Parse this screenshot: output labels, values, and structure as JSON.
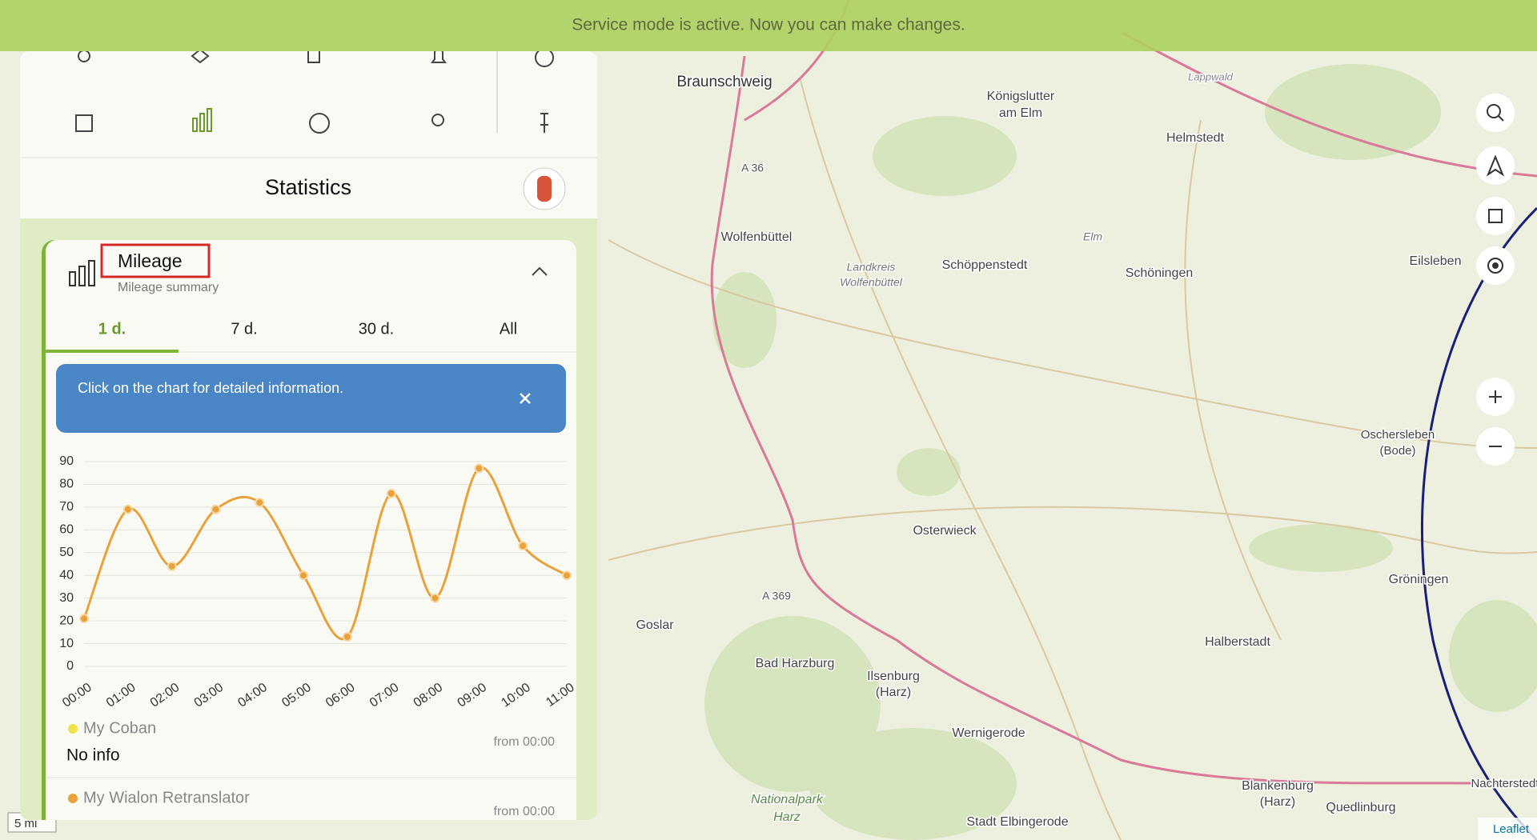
{
  "banner": {
    "text": "Service mode is active. Now you can make changes."
  },
  "panel": {
    "title": "Statistics",
    "card": {
      "title": "Mileage",
      "subtitle": "Mileage summary",
      "tabs": [
        "1 d.",
        "7 d.",
        "30 d.",
        "All"
      ],
      "info": "Click on the chart for detailed information.",
      "items": [
        {
          "name": "My Coban",
          "value": "No info",
          "since": "from 00:00"
        },
        {
          "name": "My Wialon Retranslator",
          "since": "from 00:00"
        }
      ]
    }
  },
  "chart_data": {
    "type": "line",
    "categories": [
      "00:00",
      "01:00",
      "02:00",
      "03:00",
      "04:00",
      "05:00",
      "06:00",
      "07:00",
      "08:00",
      "09:00",
      "10:00",
      "11:00"
    ],
    "series": [
      {
        "color": "#e9a23b",
        "values": [
          21,
          69,
          44,
          69,
          72,
          40,
          13,
          76,
          30,
          87,
          53,
          40
        ]
      }
    ],
    "ylim": [
      0,
      90
    ],
    "yticks": [
      0,
      10,
      20,
      30,
      40,
      50,
      60,
      70,
      80,
      90
    ],
    "grid": true
  },
  "map": {
    "labels": [
      "Braunschweig",
      "Königslutter",
      "am Elm",
      "Helmstedt",
      "Lappwald",
      "A 36",
      "Wolfenbüttel",
      "Landkreis",
      "Wolfenbüttel",
      "Schöppenstedt",
      "Elm",
      "Schöningen",
      "Eilsleben",
      "Oschersleben",
      "(Bode)",
      "Osterwieck",
      "Gröningen",
      "A 369",
      "Goslar",
      "Bad Harzburg",
      "Halberstadt",
      "Ilsenburg",
      "(Harz)",
      "Wernigerode",
      "Nationalpark",
      "Harz",
      "Blankenburg",
      "(Harz)",
      "Quedlinburg",
      "Stadt Elbingerode",
      "Nachterstedt"
    ],
    "scale": "5 mi",
    "attribution": "Leaflet"
  }
}
